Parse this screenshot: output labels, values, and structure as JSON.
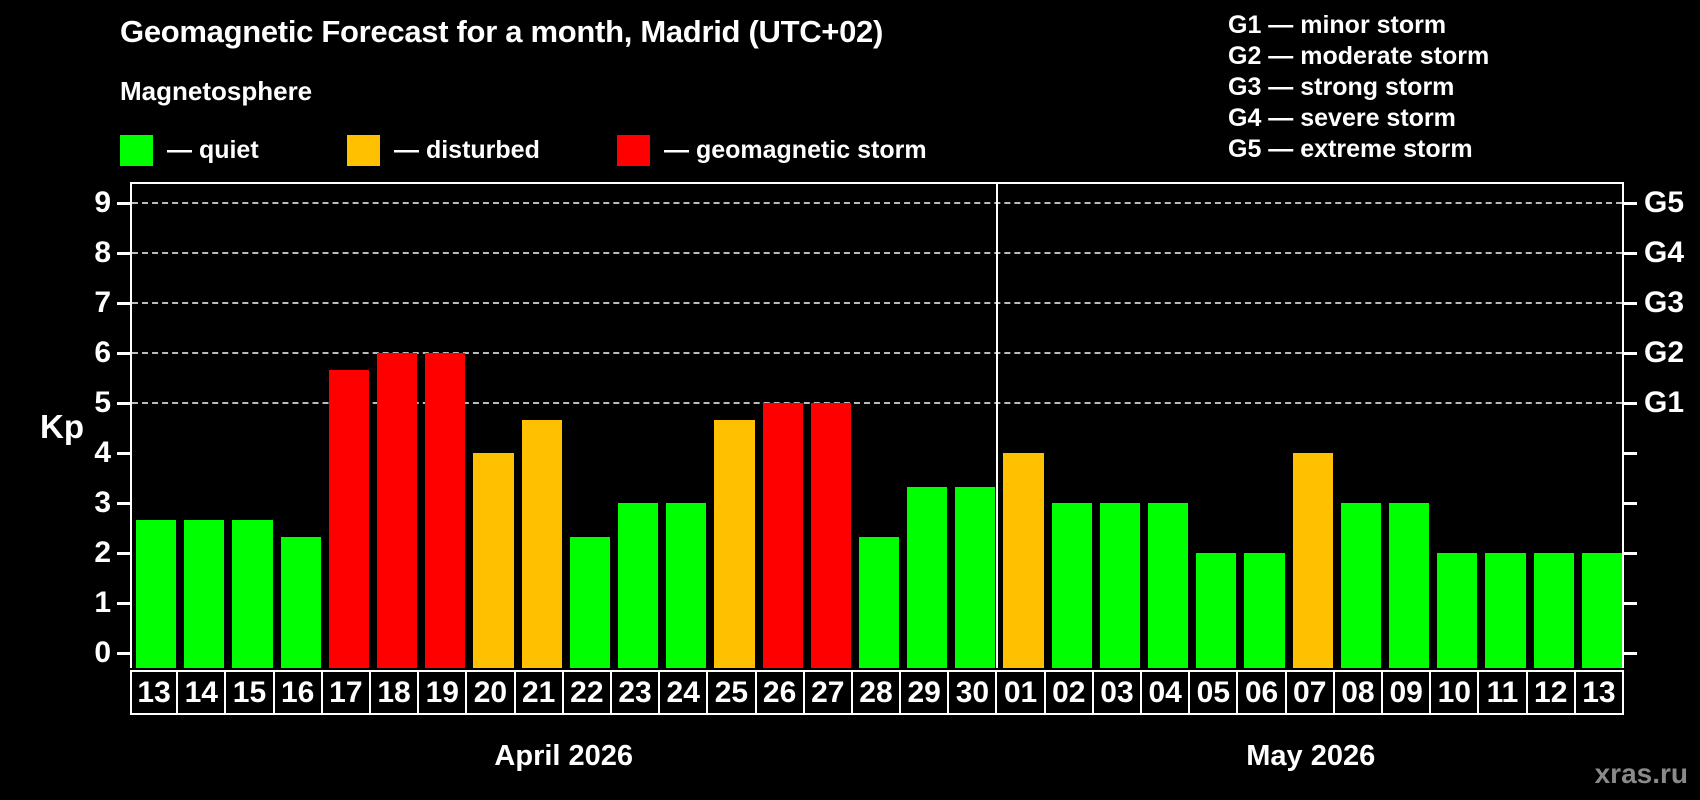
{
  "title": "Geomagnetic Forecast for a month, Madrid (UTC+02)",
  "subtitle": "Magnetosphere",
  "legend": {
    "quiet": "— quiet",
    "disturbed": "— disturbed",
    "storm": "— geomagnetic storm"
  },
  "g_scale_legend": [
    "G1 — minor storm",
    "G2 — moderate storm",
    "G3 — strong storm",
    "G4 — severe storm",
    "G5 — extreme storm"
  ],
  "colors": {
    "quiet": "#00ff00",
    "disturbed": "#ffc000",
    "storm": "#ff0000",
    "background": "#000000",
    "grid": "#bbbbbb",
    "frame": "#ffffff",
    "watermark": "#8a8a8a"
  },
  "watermark": "xras.ru",
  "chart_data": {
    "type": "bar",
    "ylabel": "Kp",
    "ylim": [
      0,
      9
    ],
    "left_ticks": [
      0,
      1,
      2,
      3,
      4,
      5,
      6,
      7,
      8,
      9
    ],
    "grid_levels": [
      5,
      6,
      7,
      8,
      9
    ],
    "right_labels": [
      {
        "value": 5,
        "label": "G1"
      },
      {
        "value": 6,
        "label": "G2"
      },
      {
        "value": 7,
        "label": "G3"
      },
      {
        "value": 8,
        "label": "G4"
      },
      {
        "value": 9,
        "label": "G5"
      }
    ],
    "legend_position": "top-left",
    "grid": "dashed, G-levels only",
    "months": [
      {
        "label": "April 2026",
        "days": [
          "13",
          "14",
          "15",
          "16",
          "17",
          "18",
          "19",
          "20",
          "21",
          "22",
          "23",
          "24",
          "25",
          "26",
          "27",
          "28",
          "29",
          "30"
        ],
        "values": [
          2.67,
          2.67,
          2.67,
          2.33,
          5.67,
          6.0,
          6.0,
          4.0,
          4.67,
          2.33,
          3.0,
          3.0,
          4.67,
          5.0,
          5.0,
          2.33,
          3.33,
          3.33
        ],
        "status": [
          "quiet",
          "quiet",
          "quiet",
          "quiet",
          "storm",
          "storm",
          "storm",
          "disturbed",
          "disturbed",
          "quiet",
          "quiet",
          "quiet",
          "disturbed",
          "storm",
          "storm",
          "quiet",
          "quiet",
          "quiet"
        ]
      },
      {
        "label": "May 2026",
        "days": [
          "01",
          "02",
          "03",
          "04",
          "05",
          "06",
          "07",
          "08",
          "09",
          "10",
          "11",
          "12",
          "13"
        ],
        "values": [
          4.0,
          3.0,
          3.0,
          3.0,
          2.0,
          2.0,
          4.0,
          3.0,
          3.0,
          2.0,
          2.0,
          2.0,
          2.0
        ],
        "status": [
          "disturbed",
          "quiet",
          "quiet",
          "quiet",
          "quiet",
          "quiet",
          "disturbed",
          "quiet",
          "quiet",
          "quiet",
          "quiet",
          "quiet",
          "quiet"
        ]
      }
    ]
  }
}
